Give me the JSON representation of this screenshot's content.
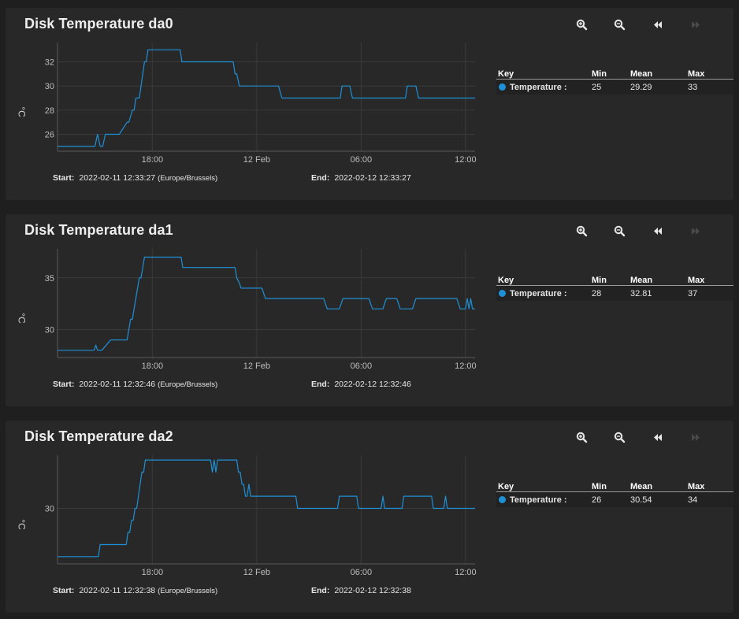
{
  "toolbar": {
    "zoom_in_icon": "zoom-in-icon",
    "zoom_out_icon": "zoom-out-icon",
    "back_icon": "rewind-icon",
    "forward_icon": "fast-forward-icon"
  },
  "legend_headers": {
    "key": "Key",
    "min": "Min",
    "mean": "Mean",
    "max": "Max"
  },
  "colors": {
    "series": "#1e90d6",
    "card": "#282828",
    "background": "#1f1f1f",
    "grid": "#3a3a3a"
  },
  "x_axis_ticks": [
    {
      "t": 5.45,
      "label": "18:00"
    },
    {
      "t": 11.45,
      "label": "12 Feb"
    },
    {
      "t": 17.45,
      "label": "06:00"
    },
    {
      "t": 23.45,
      "label": "12:00"
    }
  ],
  "charts": [
    {
      "title": "Disk Temperature da0",
      "ylabel": "°C",
      "start_label": "Start:",
      "start_value": "2022-02-11 12:33:27",
      "start_tz": "(Europe/Brussels)",
      "end_label": "End:",
      "end_value": "2022-02-12 12:33:27",
      "legend": {
        "name": "Temperature :",
        "min": "25",
        "mean": "29.29",
        "max": "33"
      }
    },
    {
      "title": "Disk Temperature da1",
      "ylabel": "°C",
      "start_label": "Start:",
      "start_value": "2022-02-11 12:32:46",
      "start_tz": "(Europe/Brussels)",
      "end_label": "End:",
      "end_value": "2022-02-12 12:32:46",
      "legend": {
        "name": "Temperature :",
        "min": "28",
        "mean": "32.81",
        "max": "37"
      }
    },
    {
      "title": "Disk Temperature da2",
      "ylabel": "°C",
      "start_label": "Start:",
      "start_value": "2022-02-11 12:32:38",
      "start_tz": "(Europe/Brussels)",
      "end_label": "End:",
      "end_value": "2022-02-12 12:32:38",
      "legend": {
        "name": "Temperature :",
        "min": "26",
        "mean": "30.54",
        "max": "34"
      }
    }
  ],
  "chart_data": [
    {
      "type": "line",
      "title": "Disk Temperature da0",
      "xlabel": "",
      "ylabel": "°C",
      "x_unit": "hours since 2022-02-11 12:33",
      "xlim": [
        0,
        24
      ],
      "ylim": [
        24.6,
        33.6
      ],
      "yticks": [
        26,
        28,
        30,
        32
      ],
      "series": [
        {
          "name": "Temperature",
          "x": [
            0,
            2.0,
            2.15,
            2.3,
            2.45,
            2.6,
            2.75,
            2.9,
            3.25,
            3.4,
            3.55,
            4.0,
            4.1,
            4.2,
            4.3,
            4.4,
            4.5,
            4.6,
            4.7,
            4.8,
            4.9,
            5.0,
            5.1,
            5.2,
            5.35,
            7.05,
            7.15,
            10.1,
            10.2,
            10.3,
            10.45,
            12.7,
            12.8,
            12.9,
            13.0,
            16.25,
            16.35,
            16.6,
            16.8,
            16.95,
            20.0,
            20.1,
            20.4,
            20.6,
            20.75,
            24.0
          ],
          "values": [
            25,
            25,
            25,
            26,
            25,
            25,
            26,
            26,
            26,
            26,
            26,
            27,
            27,
            27.5,
            28,
            28,
            29,
            29,
            29,
            30,
            31,
            32,
            32,
            33,
            33,
            33,
            32,
            32,
            31,
            31,
            30,
            30,
            29.5,
            29,
            29,
            29,
            30,
            30,
            30,
            29,
            29,
            30,
            30,
            30,
            29,
            29
          ]
        }
      ]
    },
    {
      "type": "line",
      "title": "Disk Temperature da1",
      "xlabel": "",
      "ylabel": "°C",
      "x_unit": "hours since 2022-02-11 12:32",
      "xlim": [
        0,
        24
      ],
      "ylim": [
        27.3,
        37.8
      ],
      "yticks": [
        30,
        35
      ],
      "series": [
        {
          "name": "Temperature",
          "x": [
            0,
            2.1,
            2.2,
            2.3,
            2.45,
            2.55,
            3.05,
            3.15,
            4.0,
            4.1,
            4.2,
            4.3,
            4.4,
            4.5,
            4.6,
            4.7,
            4.8,
            4.9,
            5.0,
            5.1,
            5.25,
            7.1,
            7.2,
            10.2,
            10.3,
            10.45,
            10.55,
            11.75,
            11.85,
            11.95,
            12.05,
            15.3,
            15.4,
            15.5,
            15.6,
            16.2,
            16.3,
            16.4,
            17.9,
            18.0,
            18.1,
            18.2,
            18.7,
            18.8,
            18.9,
            19.5,
            19.6,
            19.7,
            19.8,
            20.4,
            20.5,
            20.6,
            22.95,
            23.05,
            23.15,
            23.45,
            23.55,
            23.65,
            23.75,
            23.85,
            24.0
          ],
          "values": [
            28,
            28,
            28.5,
            28,
            28,
            28,
            29,
            29,
            29,
            30,
            31,
            31,
            32,
            33,
            34,
            35,
            35,
            36,
            37,
            37,
            37,
            37,
            36,
            36,
            35,
            34.5,
            34,
            34,
            33.5,
            33,
            33,
            33,
            32.5,
            32,
            32,
            32,
            32.5,
            33,
            33,
            32.5,
            32,
            32,
            32,
            32.5,
            33,
            33,
            32.5,
            32,
            32,
            32,
            32.5,
            33,
            33,
            32.5,
            32,
            32,
            33,
            32,
            33,
            32,
            32
          ]
        }
      ]
    },
    {
      "type": "line",
      "title": "Disk Temperature da2",
      "xlabel": "",
      "ylabel": "°C",
      "x_unit": "hours since 2022-02-11 12:32",
      "xlim": [
        0,
        24
      ],
      "ylim": [
        25.4,
        34.4
      ],
      "yticks": [
        30
      ],
      "series": [
        {
          "name": "Temperature",
          "x": [
            0,
            2.35,
            2.45,
            3.95,
            4.05,
            4.15,
            4.25,
            4.35,
            4.45,
            4.55,
            4.65,
            4.75,
            4.85,
            4.95,
            5.05,
            5.15,
            5.3,
            8.8,
            8.9,
            9.0,
            9.1,
            9.2,
            9.35,
            10.3,
            10.4,
            10.5,
            10.6,
            10.7,
            10.8,
            10.9,
            11.0,
            11.1,
            11.5,
            11.6,
            13.7,
            13.8,
            13.9,
            16.1,
            16.2,
            16.3,
            17.2,
            17.3,
            17.4,
            18.6,
            18.7,
            18.8,
            18.9,
            19.8,
            19.9,
            20.0,
            21.5,
            21.6,
            21.7,
            22.2,
            22.3,
            22.4,
            24.0
          ],
          "values": [
            26,
            26,
            27,
            27,
            28,
            28,
            29,
            29,
            30,
            30,
            31,
            32,
            33,
            33,
            34,
            34,
            34,
            34,
            33,
            34,
            33,
            34,
            34,
            34,
            33,
            33,
            32,
            32,
            31,
            31,
            32,
            31,
            31,
            31,
            31,
            30,
            30,
            30,
            31,
            31,
            31,
            30,
            30,
            30,
            31,
            30,
            30,
            30,
            31,
            31,
            31,
            30,
            30,
            30,
            31,
            30,
            30
          ]
        }
      ]
    }
  ]
}
